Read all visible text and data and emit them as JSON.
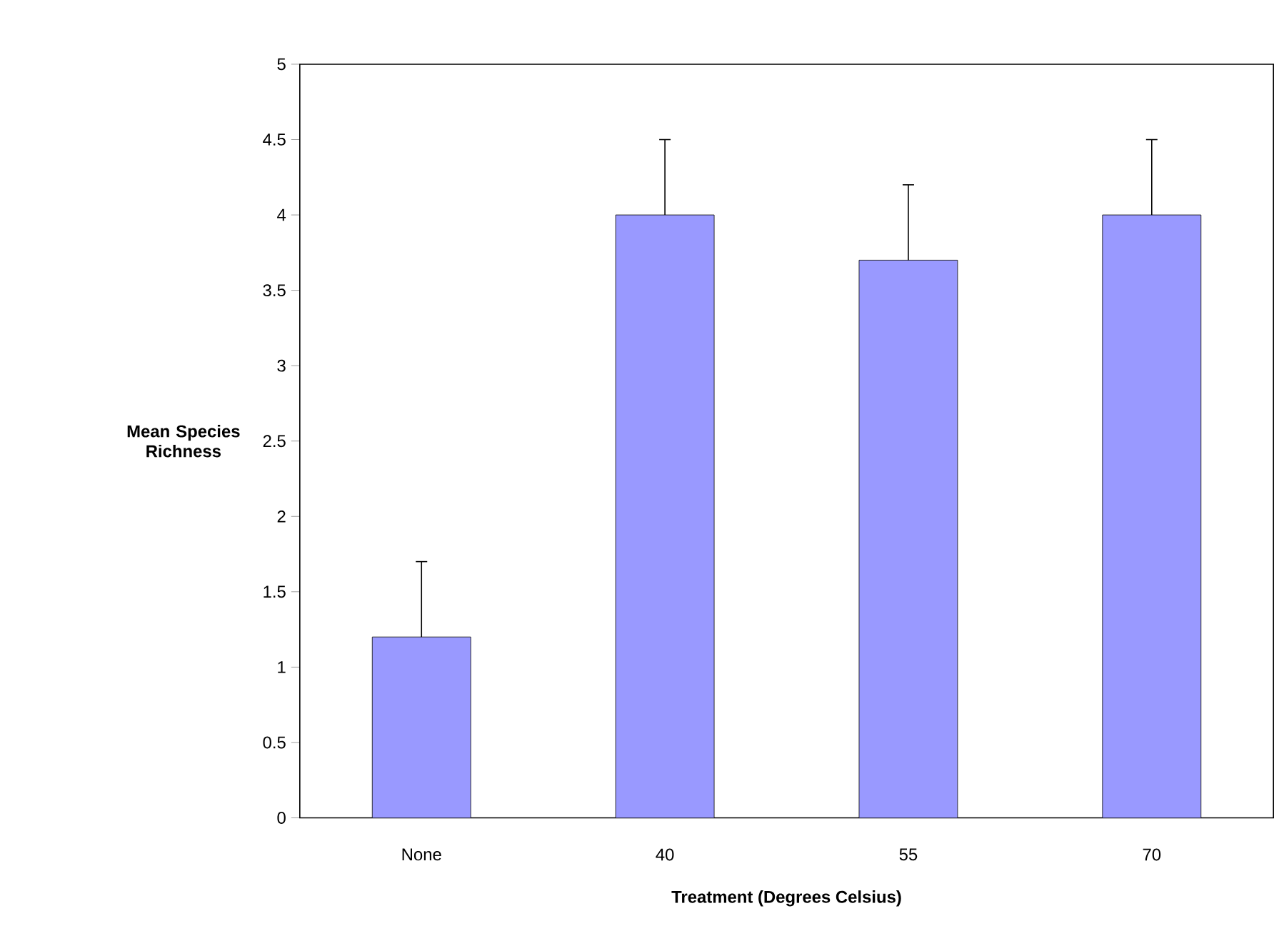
{
  "chart_data": {
    "type": "bar",
    "xlabel": "Treatment (Degrees Celsius)",
    "ylabel": "Mean Species Richness",
    "categories": [
      "None",
      "40",
      "55",
      "70"
    ],
    "values": [
      1.2,
      4.0,
      3.7,
      4.0
    ],
    "errors": [
      [
        1.2,
        1.7
      ],
      [
        4.0,
        4.5
      ],
      [
        3.7,
        4.2
      ],
      [
        4.0,
        4.5
      ]
    ],
    "color": "#9999ff",
    "ylim": [
      0,
      5
    ],
    "yticks": [
      0,
      0.5,
      1,
      1.5,
      2,
      2.5,
      3,
      3.5,
      4,
      4.5,
      5
    ]
  }
}
